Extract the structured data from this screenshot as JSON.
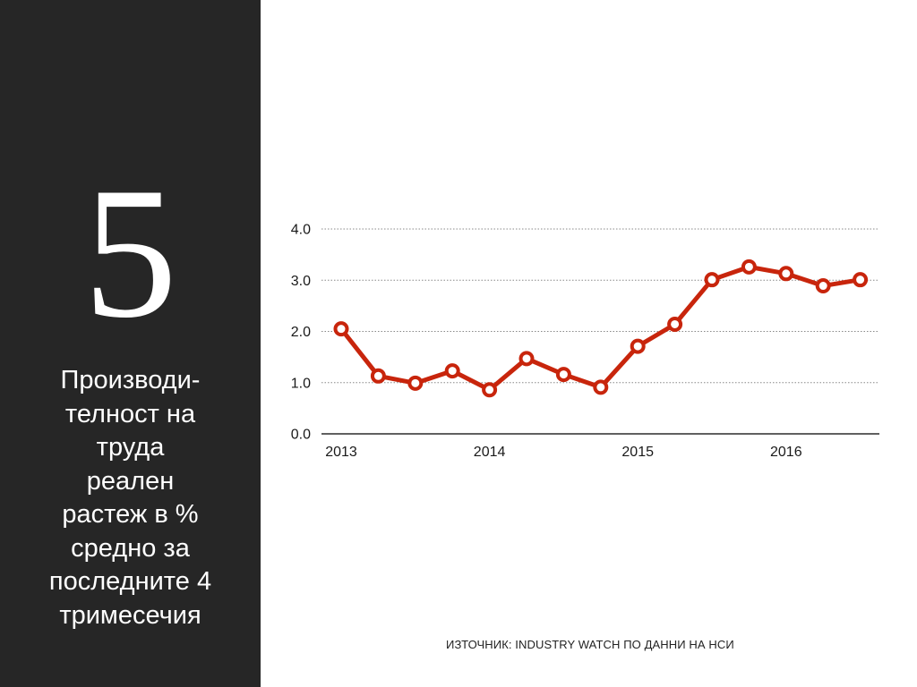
{
  "slide": {
    "number": "5",
    "title": "Производи-\nтелност на\nтруда\nреален\nрастеж в %\nсредно за\nпоследните 4\nтримесечия",
    "source": "ИЗТОЧНИК:  INDUSTRY WATCH ПО ДАННИ НА НСИ"
  },
  "colors": {
    "panel": "#262626",
    "line": "#c8250c",
    "grid": "#888888"
  },
  "chart_data": {
    "type": "line",
    "title": "",
    "xlabel": "",
    "ylabel": "",
    "ylim": [
      0,
      4
    ],
    "yticks": [
      "0.0",
      "1.0",
      "2.0",
      "3.0",
      "4.0"
    ],
    "xtick_labels": [
      "2013",
      "2014",
      "2015",
      "2016"
    ],
    "grid": true,
    "legend": "none",
    "series": [
      {
        "x": [
          "2013Q1",
          "2013Q2",
          "2013Q3",
          "2013Q4",
          "2014Q1",
          "2014Q2",
          "2014Q3",
          "2014Q4",
          "2015Q1",
          "2015Q2",
          "2015Q3",
          "2015Q4",
          "2016Q1",
          "2016Q2",
          "2016Q3"
        ],
        "values": [
          2.05,
          1.13,
          0.99,
          1.23,
          0.86,
          1.47,
          1.16,
          0.91,
          1.71,
          2.14,
          3.01,
          3.26,
          3.13,
          2.89,
          3.01
        ]
      }
    ]
  }
}
